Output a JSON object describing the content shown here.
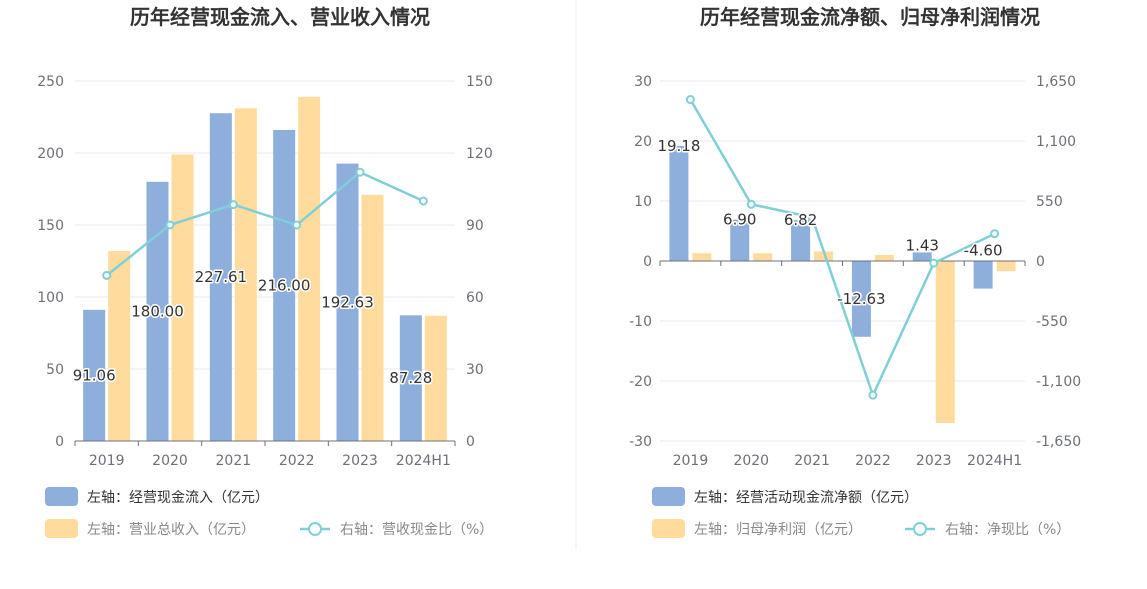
{
  "colors": {
    "bar_primary": "#8eaedc",
    "bar_secondary": "#ffdb9e",
    "line": "#7fd0d6",
    "legend_text_active": "#333333",
    "legend_text_inactive": "#8a8a8a"
  },
  "chart_data": [
    {
      "type": "bar",
      "title": "历年经营现金流入、营业收入情况",
      "categories": [
        "2019",
        "2020",
        "2021",
        "2022",
        "2023",
        "2024H1"
      ],
      "left_axis": {
        "ticks": [
          "0",
          "50",
          "100",
          "150",
          "200",
          "250"
        ],
        "ylim": [
          0,
          250
        ]
      },
      "right_axis": {
        "ticks": [
          "0",
          "30",
          "60",
          "90",
          "120",
          "150"
        ],
        "ylim": [
          0,
          150
        ]
      },
      "series": [
        {
          "name": "左轴：经营现金流入（亿元）",
          "kind": "bar",
          "axis": "left",
          "values": [
            91.06,
            180.0,
            227.61,
            216.0,
            192.63,
            87.28
          ],
          "labels": [
            "91.06",
            "180.00",
            "227.61",
            "216.00",
            "192.63",
            "87.28"
          ]
        },
        {
          "name": "左轴：营业总收入（亿元）",
          "kind": "bar",
          "axis": "left",
          "values": [
            132,
            199,
            231,
            239,
            171,
            87
          ]
        },
        {
          "name": "右轴：营收现金比（%）",
          "kind": "line",
          "axis": "right",
          "values": [
            69,
            90,
            98.5,
            90,
            112,
            100
          ]
        }
      ],
      "legend": "bottom-left",
      "grid": true
    },
    {
      "type": "bar",
      "title": "历年经营现金流净额、归母净利润情况",
      "categories": [
        "2019",
        "2020",
        "2021",
        "2022",
        "2023",
        "2024H1"
      ],
      "left_axis": {
        "ticks": [
          "-30",
          "-20",
          "-10",
          "0",
          "10",
          "20",
          "30"
        ],
        "ylim": [
          -30,
          30
        ]
      },
      "right_axis": {
        "ticks": [
          "-1,650",
          "-1,100",
          "-550",
          "0",
          "550",
          "1,100",
          "1,650"
        ],
        "ylim": [
          -1650,
          1650
        ]
      },
      "series": [
        {
          "name": "左轴：经营活动现金流净额（亿元）",
          "kind": "bar",
          "axis": "left",
          "values": [
            19.18,
            6.9,
            6.82,
            -12.63,
            1.43,
            -4.6
          ],
          "labels": [
            "19.18",
            "6.90",
            "6.82",
            "-12.63",
            "1.43",
            "-4.60"
          ]
        },
        {
          "name": "左轴：归母净利润（亿元）",
          "kind": "bar",
          "axis": "left",
          "values": [
            1.3,
            1.3,
            1.6,
            1.0,
            -27.0,
            -1.7
          ]
        },
        {
          "name": "右轴：净现比（%）",
          "kind": "line",
          "axis": "right",
          "values": [
            1480,
            520,
            400,
            -1230,
            -20,
            250
          ]
        }
      ],
      "legend": "bottom-left",
      "grid": true
    }
  ]
}
